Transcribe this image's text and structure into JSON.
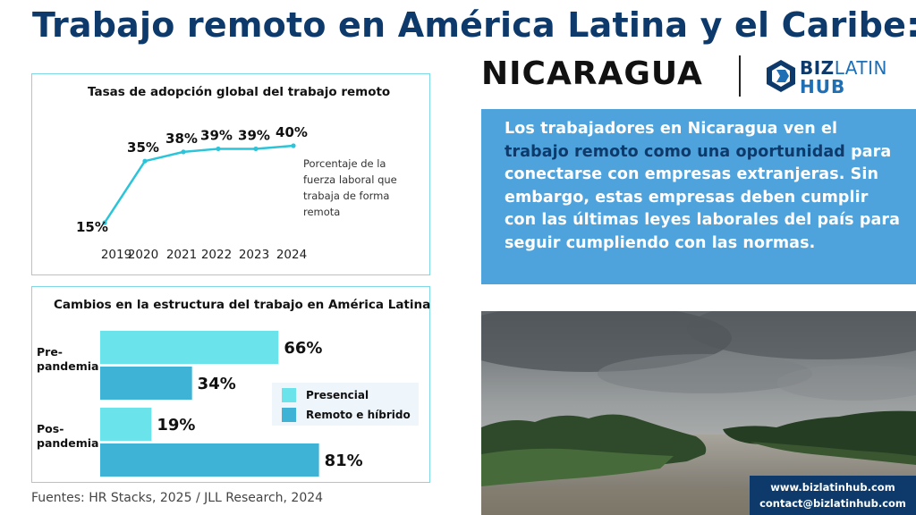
{
  "header": {
    "title": "Trabajo remoto en América Latina y el Caribe:",
    "country": "NICARAGUA",
    "logo_line1_a": "BIZ",
    "logo_line1_b": "LATIN",
    "logo_line2": "HUB"
  },
  "callout": {
    "part1": "Los trabajadores en Nicaragua ven el ",
    "part2": "trabajo remoto como una oportunidad",
    "part3": " para conectarse con empresas extranjeras. Sin embargo, estas empresas deben cumplir con las últimas leyes laborales del país para seguir cumpliendo con las normas."
  },
  "contact": {
    "website": "www.bizlatinhub.com",
    "email": "contact@bizlatinhub.com"
  },
  "source": "Fuentes: HR Stacks, 2025 / JLL Research, 2024",
  "colors": {
    "navy": "#0d3a6b",
    "callout_blue": "#4fa3dd",
    "line_teal": "#2bc4d8",
    "bar_presencial": "#6ae4ea",
    "bar_remoto": "#3eb3d6",
    "panel_border": "#7fd8e6"
  },
  "chart_data": [
    {
      "type": "line",
      "title": "Tasas de adopción global del trabajo remoto",
      "x": [
        "2019",
        "2020",
        "2021",
        "2022",
        "2023",
        "2024"
      ],
      "y": [
        15,
        35,
        38,
        39,
        39,
        40
      ],
      "labels": [
        "15%",
        "35%",
        "38%",
        "39%",
        "39%",
        "40%"
      ],
      "ylim": [
        15,
        40
      ],
      "annotation": "Porcentaje de la fuerza laboral que trabaja de forma remota",
      "grid": false,
      "line_color": "#2bc4d8"
    },
    {
      "type": "bar",
      "orientation": "horizontal",
      "title": "Cambios en la estructura del trabajo en América Latina",
      "categories": [
        "Pre-pandemia",
        "Pos-pandemia"
      ],
      "category_lines": [
        [
          "Pre-",
          "pandemia"
        ],
        [
          "Pos-",
          "pandemia"
        ]
      ],
      "series": [
        {
          "name": "Presencial",
          "values": [
            66,
            19
          ],
          "labels": [
            "66%",
            "19%"
          ],
          "color": "#6ae4ea"
        },
        {
          "name": "Remoto e híbrido",
          "values": [
            34,
            81
          ],
          "labels": [
            "34%",
            "81%"
          ],
          "color": "#3eb3d6"
        }
      ],
      "legend": "center-right",
      "xlim": [
        0,
        100
      ]
    }
  ]
}
